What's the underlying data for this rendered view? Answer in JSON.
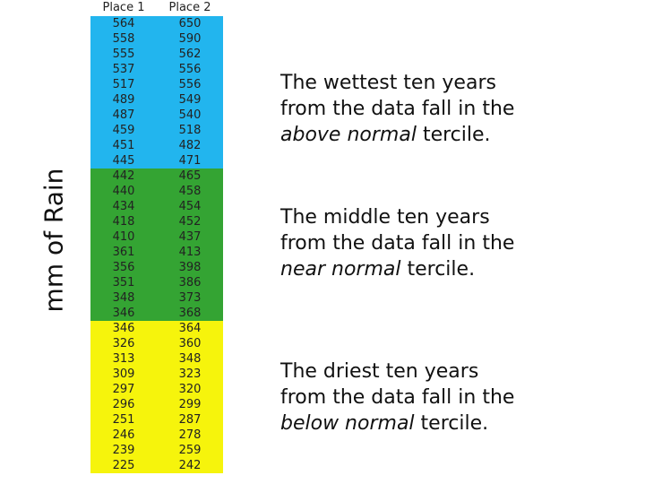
{
  "axis_label": "mm of Rain",
  "table": {
    "header": [
      "Place 1",
      "Place 2"
    ],
    "groups": [
      {
        "color": "#22b5ee",
        "rows": [
          [
            564,
            650
          ],
          [
            558,
            590
          ],
          [
            555,
            562
          ],
          [
            537,
            556
          ],
          [
            517,
            556
          ],
          [
            489,
            549
          ],
          [
            487,
            540
          ],
          [
            459,
            518
          ],
          [
            451,
            482
          ],
          [
            445,
            471
          ]
        ]
      },
      {
        "color": "#34a433",
        "rows": [
          [
            442,
            465
          ],
          [
            440,
            458
          ],
          [
            434,
            454
          ],
          [
            418,
            452
          ],
          [
            410,
            437
          ],
          [
            361,
            413
          ],
          [
            356,
            398
          ],
          [
            351,
            386
          ],
          [
            348,
            373
          ],
          [
            346,
            368
          ]
        ]
      },
      {
        "color": "#f6f40c",
        "rows": [
          [
            346,
            364
          ],
          [
            326,
            360
          ],
          [
            313,
            348
          ],
          [
            309,
            323
          ],
          [
            297,
            320
          ],
          [
            296,
            299
          ],
          [
            251,
            287
          ],
          [
            246,
            278
          ],
          [
            239,
            259
          ],
          [
            225,
            242
          ]
        ]
      }
    ]
  },
  "paragraphs": [
    {
      "line1": "The wettest ten years",
      "line2": "from the data fall in the",
      "emphasis": "above normal",
      "tail": "tercile."
    },
    {
      "line1": "The middle ten years",
      "line2": "from the data fall in the",
      "emphasis": "near normal",
      "tail": "tercile."
    },
    {
      "line1": "The driest ten years",
      "line2": "from the data fall in the",
      "emphasis": "below normal",
      "tail": "tercile."
    }
  ]
}
